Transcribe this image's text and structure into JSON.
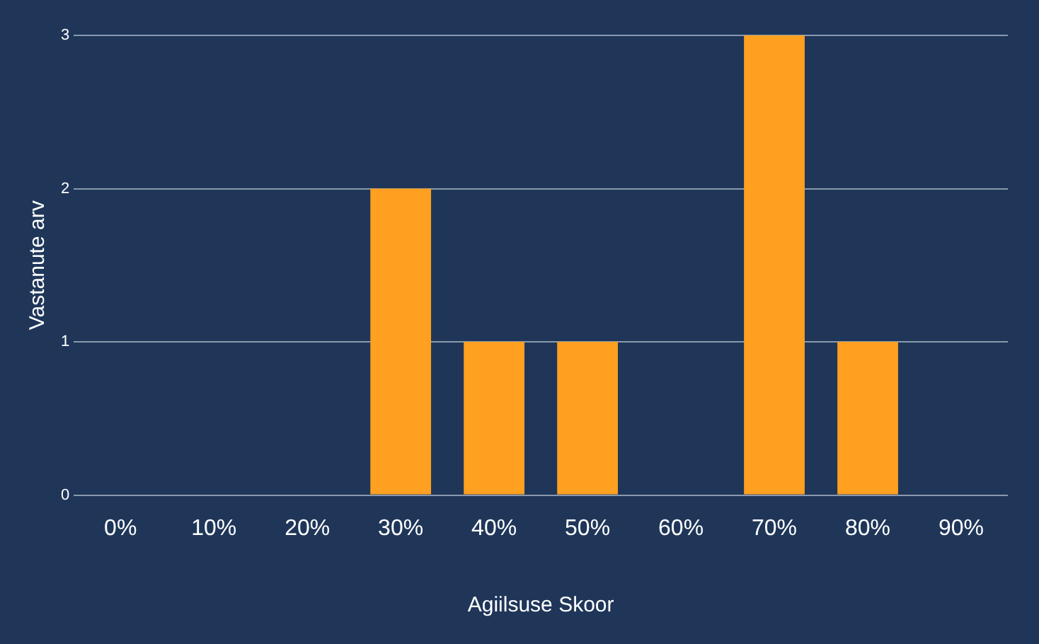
{
  "chart_data": {
    "type": "bar",
    "xlabel": "Agiilsuse Skoor",
    "ylabel": "Vastanute arv",
    "categories": [
      "0%",
      "10%",
      "20%",
      "30%",
      "40%",
      "50%",
      "60%",
      "70%",
      "80%",
      "90%"
    ],
    "values": [
      0,
      0,
      0,
      2,
      1,
      1,
      0,
      3,
      1,
      0
    ],
    "color": "#ffa020",
    "ylim": [
      0,
      3
    ],
    "yticks": [
      0,
      1,
      2,
      3
    ],
    "grid": "y"
  }
}
